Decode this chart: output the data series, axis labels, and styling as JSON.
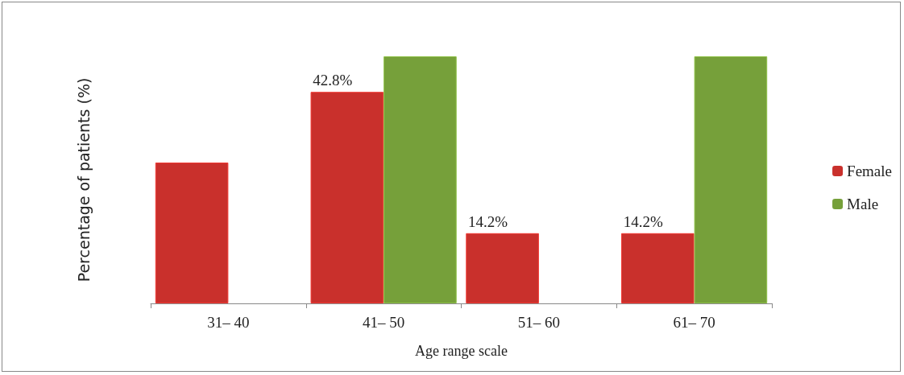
{
  "chart_data": {
    "type": "bar",
    "xlabel": "Age range scale",
    "ylabel": "Percentage of patients (%)",
    "categories": [
      "31– 40",
      "41– 50",
      "51– 60",
      "61– 70"
    ],
    "series": [
      {
        "name": "Female",
        "color": "#c9302c",
        "values": [
          28.5,
          42.8,
          14.2,
          14.2
        ],
        "value_labels": [
          null,
          "42.8%",
          "14.2%",
          "14.2%"
        ]
      },
      {
        "name": "Male",
        "color": "#76a03a",
        "values": [
          null,
          50,
          null,
          50
        ]
      }
    ],
    "ylim": [
      0,
      50
    ],
    "tick_labels": "x",
    "grid": false,
    "legend": "right"
  }
}
